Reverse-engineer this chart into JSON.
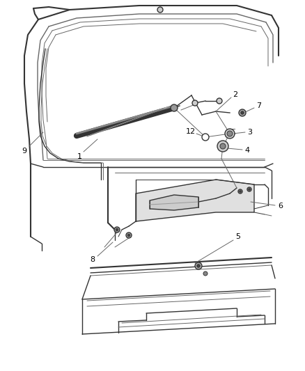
{
  "bg_color": "#ffffff",
  "line_color": "#666666",
  "dark_line": "#333333",
  "label_color": "#000000",
  "figsize": [
    4.38,
    5.33
  ],
  "dpi": 100
}
